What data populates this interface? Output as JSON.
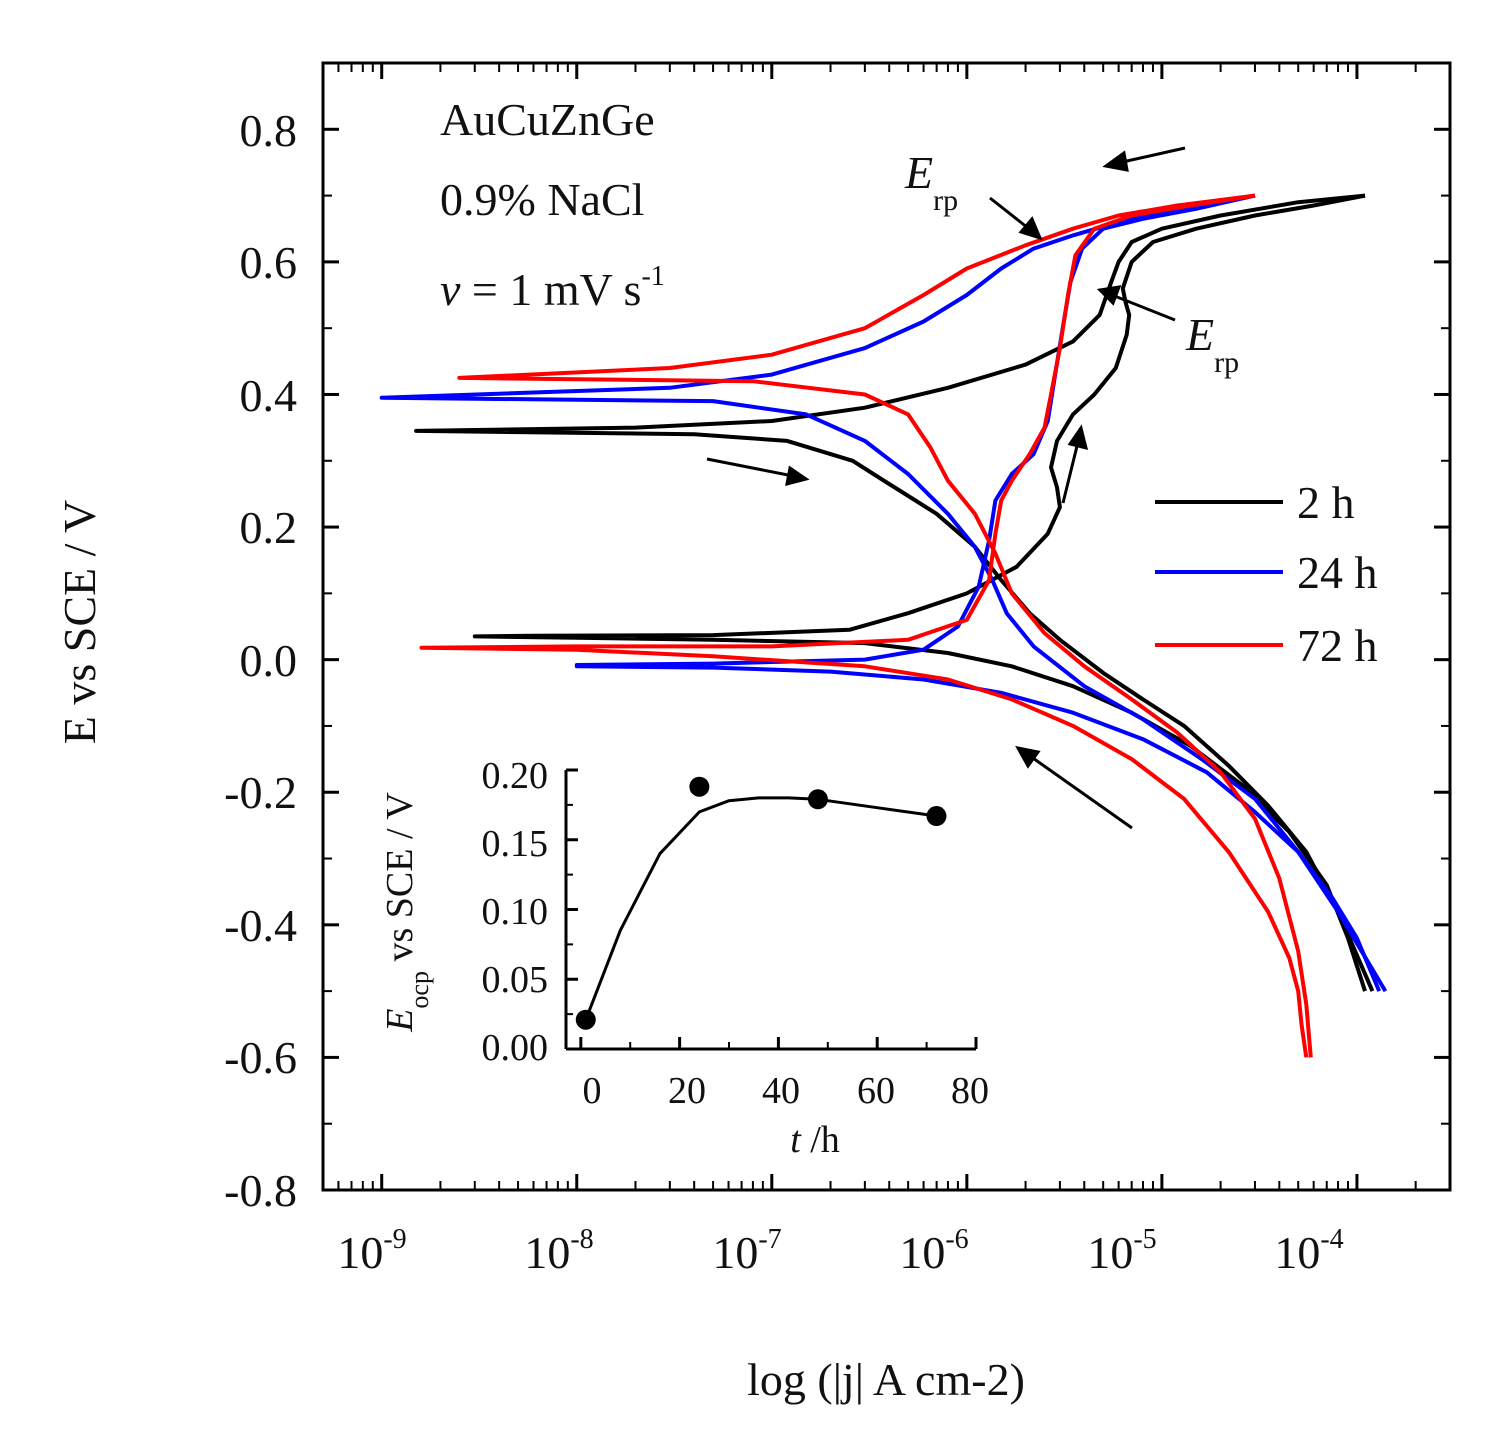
{
  "chart_data": [
    {
      "type": "line",
      "title": "",
      "xlabel": "log (|j| A cm-2)",
      "ylabel": "E vs SCE / V",
      "xscale": "log",
      "xlim": [
        5e-10,
        0.0003
      ],
      "ylim": [
        -0.8,
        0.9
      ],
      "x_ticks": [
        {
          "value": 1e-09,
          "base": "10",
          "exp": "-9"
        },
        {
          "value": 1e-08,
          "base": "10",
          "exp": "-8"
        },
        {
          "value": 1e-07,
          "base": "10",
          "exp": "-7"
        },
        {
          "value": 1e-06,
          "base": "10",
          "exp": "-6"
        },
        {
          "value": 1e-05,
          "base": "10",
          "exp": "-5"
        },
        {
          "value": 0.0001,
          "base": "10",
          "exp": "-4"
        }
      ],
      "y_ticks": [
        {
          "value": 0.8,
          "label": "0.8"
        },
        {
          "value": 0.6,
          "label": "0.6"
        },
        {
          "value": 0.4,
          "label": "0.4"
        },
        {
          "value": 0.2,
          "label": "0.2"
        },
        {
          "value": 0.0,
          "label": "0.0"
        },
        {
          "value": -0.2,
          "label": "-0.2"
        },
        {
          "value": -0.4,
          "label": "-0.4"
        },
        {
          "value": -0.6,
          "label": "-0.6"
        },
        {
          "value": -0.8,
          "label": "-0.8"
        }
      ],
      "annotations": {
        "alloy": "AuCuZnGe",
        "solution": "0.9% NaCl",
        "scan_rate_symbol": "v",
        "scan_rate_text": " = 1 mV s",
        "scan_rate_exp": "-1",
        "erp_symbol": "E",
        "erp_sub": "rp"
      },
      "legend_position": "right",
      "series": [
        {
          "name": "2 h",
          "color": "#000000",
          "forward": [
            [
              0.00011,
              -0.5
            ],
            [
              9e-05,
              -0.42
            ],
            [
              7e-05,
              -0.34
            ],
            [
              4.5e-05,
              -0.26
            ],
            [
              2.6e-05,
              -0.19
            ],
            [
              1.4e-05,
              -0.13
            ],
            [
              7e-06,
              -0.08
            ],
            [
              3.5e-06,
              -0.04
            ],
            [
              1.7e-06,
              -0.01
            ],
            [
              8e-07,
              0.01
            ],
            [
              3e-07,
              0.025
            ],
            [
              5e-08,
              0.03
            ],
            [
              1e-08,
              0.033
            ],
            [
              3e-09,
              0.035
            ],
            [
              6e-09,
              0.036
            ],
            [
              5e-08,
              0.037
            ],
            [
              2.5e-07,
              0.045
            ],
            [
              5e-07,
              0.07
            ],
            [
              1e-06,
              0.1
            ],
            [
              1.8e-06,
              0.14
            ],
            [
              2.6e-06,
              0.19
            ],
            [
              3e-06,
              0.23
            ],
            [
              2.9e-06,
              0.26
            ],
            [
              2.7e-06,
              0.29
            ],
            [
              2.9e-06,
              0.33
            ],
            [
              3.5e-06,
              0.37
            ],
            [
              4.5e-06,
              0.4
            ],
            [
              5.8e-06,
              0.44
            ],
            [
              6.6e-06,
              0.49
            ],
            [
              6.8e-06,
              0.52
            ],
            [
              6.5e-06,
              0.54
            ],
            [
              6.3e-06,
              0.56
            ],
            [
              7e-06,
              0.6
            ],
            [
              9e-06,
              0.63
            ],
            [
              1.5e-05,
              0.65
            ],
            [
              3e-05,
              0.67
            ],
            [
              6e-05,
              0.685
            ],
            [
              0.00011,
              0.7
            ]
          ],
          "reverse": [
            [
              0.00011,
              0.7
            ],
            [
              5e-05,
              0.69
            ],
            [
              2e-05,
              0.67
            ],
            [
              1e-05,
              0.65
            ],
            [
              7e-06,
              0.63
            ],
            [
              6e-06,
              0.6
            ],
            [
              5.5e-06,
              0.57
            ],
            [
              4.8e-06,
              0.52
            ],
            [
              3.5e-06,
              0.48
            ],
            [
              2e-06,
              0.445
            ],
            [
              8e-07,
              0.41
            ],
            [
              3e-07,
              0.38
            ],
            [
              1e-07,
              0.36
            ],
            [
              2e-08,
              0.35
            ],
            [
              1.5e-09,
              0.345
            ],
            [
              4e-08,
              0.34
            ],
            [
              1.2e-07,
              0.33
            ],
            [
              2.6e-07,
              0.3
            ],
            [
              4e-07,
              0.265
            ],
            [
              7e-07,
              0.22
            ],
            [
              1.1e-06,
              0.17
            ],
            [
              1.5e-06,
              0.12
            ],
            [
              2.1e-06,
              0.07
            ],
            [
              3e-06,
              0.03
            ],
            [
              5e-06,
              -0.02
            ],
            [
              8e-06,
              -0.06
            ],
            [
              1.3e-05,
              -0.1
            ],
            [
              2.2e-05,
              -0.16
            ],
            [
              3.5e-05,
              -0.22
            ],
            [
              5.5e-05,
              -0.29
            ],
            [
              8e-05,
              -0.38
            ],
            [
              0.00012,
              -0.5
            ]
          ]
        },
        {
          "name": "24 h",
          "color": "#0000ff",
          "forward": [
            [
              0.00013,
              -0.5
            ],
            [
              0.0001,
              -0.42
            ],
            [
              7.5e-05,
              -0.36
            ],
            [
              5e-05,
              -0.29
            ],
            [
              3e-05,
              -0.23
            ],
            [
              1.7e-05,
              -0.17
            ],
            [
              8e-06,
              -0.12
            ],
            [
              3.5e-06,
              -0.08
            ],
            [
              1.5e-06,
              -0.05
            ],
            [
              6e-07,
              -0.03
            ],
            [
              2e-07,
              -0.018
            ],
            [
              5e-08,
              -0.012
            ],
            [
              1e-08,
              -0.01
            ],
            [
              1e-08,
              -0.008
            ],
            [
              5e-08,
              -0.006
            ],
            [
              3e-07,
              0.0
            ],
            [
              6e-07,
              0.015
            ],
            [
              9e-07,
              0.05
            ],
            [
              1.15e-06,
              0.11
            ],
            [
              1.3e-06,
              0.18
            ],
            [
              1.4e-06,
              0.24
            ],
            [
              1.7e-06,
              0.28
            ],
            [
              2.2e-06,
              0.31
            ],
            [
              2.6e-06,
              0.36
            ],
            [
              2.8e-06,
              0.42
            ],
            [
              3.1e-06,
              0.5
            ],
            [
              3.4e-06,
              0.57
            ],
            [
              3.9e-06,
              0.62
            ],
            [
              5e-06,
              0.65
            ],
            [
              8e-06,
              0.665
            ],
            [
              1.5e-05,
              0.68
            ],
            [
              3e-05,
              0.7
            ]
          ],
          "reverse": [
            [
              3e-05,
              0.7
            ],
            [
              1.5e-05,
              0.685
            ],
            [
              6e-06,
              0.66
            ],
            [
              3.5e-06,
              0.64
            ],
            [
              2.2e-06,
              0.62
            ],
            [
              1.5e-06,
              0.59
            ],
            [
              1e-06,
              0.55
            ],
            [
              6e-07,
              0.51
            ],
            [
              3e-07,
              0.47
            ],
            [
              1e-07,
              0.43
            ],
            [
              3e-08,
              0.41
            ],
            [
              1e-09,
              0.395
            ],
            [
              5e-08,
              0.39
            ],
            [
              1.5e-07,
              0.37
            ],
            [
              3e-07,
              0.33
            ],
            [
              5e-07,
              0.28
            ],
            [
              8e-07,
              0.22
            ],
            [
              1.1e-06,
              0.17
            ],
            [
              1.35e-06,
              0.12
            ],
            [
              1.6e-06,
              0.07
            ],
            [
              2.2e-06,
              0.02
            ],
            [
              4e-06,
              -0.04
            ],
            [
              8e-06,
              -0.09
            ],
            [
              1.6e-05,
              -0.15
            ],
            [
              3e-05,
              -0.21
            ],
            [
              5e-05,
              -0.29
            ],
            [
              8e-05,
              -0.38
            ],
            [
              0.00014,
              -0.5
            ]
          ]
        },
        {
          "name": "72 h",
          "color": "#ff0000",
          "forward": [
            [
              5.5e-05,
              -0.6
            ],
            [
              5.2e-05,
              -0.55
            ],
            [
              5e-05,
              -0.5
            ],
            [
              4.5e-05,
              -0.45
            ],
            [
              3.5e-05,
              -0.38
            ],
            [
              2.2e-05,
              -0.29
            ],
            [
              1.3e-05,
              -0.21
            ],
            [
              7e-06,
              -0.15
            ],
            [
              3.5e-06,
              -0.1
            ],
            [
              1.7e-06,
              -0.06
            ],
            [
              8e-07,
              -0.03
            ],
            [
              3e-07,
              -0.01
            ],
            [
              5e-08,
              0.005
            ],
            [
              1e-08,
              0.015
            ],
            [
              1.6e-09,
              0.018
            ],
            [
              1e-08,
              0.02
            ],
            [
              1e-07,
              0.02
            ],
            [
              5e-07,
              0.03
            ],
            [
              1e-06,
              0.06
            ],
            [
              1.3e-06,
              0.12
            ],
            [
              1.4e-06,
              0.19
            ],
            [
              1.5e-06,
              0.24
            ],
            [
              1.7e-06,
              0.27
            ],
            [
              2.1e-06,
              0.31
            ],
            [
              2.5e-06,
              0.35
            ],
            [
              2.7e-06,
              0.4
            ],
            [
              3e-06,
              0.47
            ],
            [
              3.3e-06,
              0.55
            ],
            [
              3.6e-06,
              0.61
            ],
            [
              4.5e-06,
              0.65
            ],
            [
              7e-06,
              0.67
            ],
            [
              1.4e-05,
              0.685
            ],
            [
              3e-05,
              0.7
            ]
          ],
          "reverse": [
            [
              3e-05,
              0.7
            ],
            [
              1.2e-05,
              0.685
            ],
            [
              6e-06,
              0.67
            ],
            [
              3.5e-06,
              0.65
            ],
            [
              2e-06,
              0.625
            ],
            [
              1e-06,
              0.59
            ],
            [
              6e-07,
              0.55
            ],
            [
              3e-07,
              0.5
            ],
            [
              1e-07,
              0.46
            ],
            [
              3e-08,
              0.44
            ],
            [
              2.5e-09,
              0.425
            ],
            [
              8e-08,
              0.42
            ],
            [
              3e-07,
              0.4
            ],
            [
              5e-07,
              0.37
            ],
            [
              6.5e-07,
              0.32
            ],
            [
              8e-07,
              0.27
            ],
            [
              1.1e-06,
              0.22
            ],
            [
              1.4e-06,
              0.16
            ],
            [
              1.7e-06,
              0.1
            ],
            [
              2.5e-06,
              0.04
            ],
            [
              4e-06,
              -0.01
            ],
            [
              7e-06,
              -0.06
            ],
            [
              1.2e-05,
              -0.11
            ],
            [
              2e-05,
              -0.17
            ],
            [
              3e-05,
              -0.24
            ],
            [
              4e-05,
              -0.33
            ],
            [
              5e-05,
              -0.44
            ],
            [
              5.5e-05,
              -0.52
            ],
            [
              5.8e-05,
              -0.6
            ]
          ]
        }
      ]
    },
    {
      "type": "line",
      "title": "",
      "xlabel_symbol": "t",
      "xlabel_unit": " /h",
      "ylabel_symbol": "E",
      "ylabel_sub": "ocp",
      "ylabel_text": " vs SCE / V",
      "xlim": [
        -3,
        80
      ],
      "ylim": [
        0.0,
        0.2
      ],
      "x_ticks": [
        {
          "value": 0,
          "label": "0"
        },
        {
          "value": 20,
          "label": "20"
        },
        {
          "value": 40,
          "label": "40"
        },
        {
          "value": 60,
          "label": "60"
        },
        {
          "value": 80,
          "label": "80"
        }
      ],
      "y_ticks": [
        {
          "value": 0.0,
          "label": "0.00"
        },
        {
          "value": 0.05,
          "label": "0.05"
        },
        {
          "value": 0.1,
          "label": "0.10"
        },
        {
          "value": 0.15,
          "label": "0.15"
        },
        {
          "value": 0.2,
          "label": "0.20"
        }
      ],
      "points": [
        {
          "t": 1,
          "E": 0.021
        },
        {
          "t": 24,
          "E": 0.188
        },
        {
          "t": 48,
          "E": 0.179
        },
        {
          "t": 72,
          "E": 0.167
        }
      ],
      "fit_curve": [
        [
          1,
          0.021
        ],
        [
          8,
          0.085
        ],
        [
          16,
          0.14
        ],
        [
          24,
          0.17
        ],
        [
          30,
          0.178
        ],
        [
          36,
          0.18
        ],
        [
          42,
          0.18
        ],
        [
          48,
          0.179
        ],
        [
          60,
          0.173
        ],
        [
          72,
          0.167
        ]
      ]
    }
  ]
}
